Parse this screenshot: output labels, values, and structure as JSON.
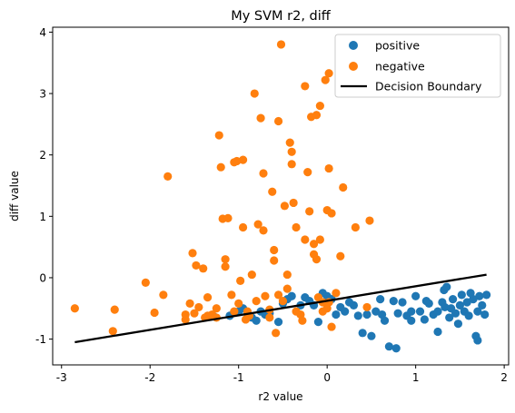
{
  "chart_data": {
    "type": "scatter",
    "title": "My SVM r2, diff",
    "xlabel": "r2 value",
    "ylabel": "diff value",
    "xlim": [
      -3.1,
      2.05
    ],
    "ylim": [
      -1.42,
      4.08
    ],
    "xticks": [
      -3,
      -2,
      -1,
      0,
      1,
      2
    ],
    "yticks": [
      -1,
      0,
      1,
      2,
      3,
      4
    ],
    "grid": false,
    "legend_position": "top-right",
    "series": [
      {
        "name": "positive",
        "color": "#1f77b4",
        "marker": "circle",
        "points": [
          [
            -1.28,
            -0.63
          ],
          [
            -1.1,
            -0.62
          ],
          [
            -1.05,
            -0.56
          ],
          [
            -1.0,
            -0.55
          ],
          [
            -0.95,
            -0.5
          ],
          [
            -0.9,
            -0.58
          ],
          [
            -0.85,
            -0.65
          ],
          [
            -0.8,
            -0.7
          ],
          [
            -0.75,
            -0.55
          ],
          [
            -0.7,
            -0.6
          ],
          [
            -0.65,
            -0.58
          ],
          [
            -0.55,
            -0.72
          ],
          [
            -0.5,
            -0.42
          ],
          [
            -0.45,
            -0.35
          ],
          [
            -0.4,
            -0.3
          ],
          [
            -0.3,
            -0.45
          ],
          [
            -0.25,
            -0.32
          ],
          [
            -0.2,
            -0.38
          ],
          [
            -0.15,
            -0.45
          ],
          [
            -0.1,
            -0.72
          ],
          [
            -0.05,
            -0.25
          ],
          [
            0.0,
            -0.3
          ],
          [
            0.05,
            -0.35
          ],
          [
            0.1,
            -0.6
          ],
          [
            0.15,
            -0.48
          ],
          [
            0.2,
            -0.55
          ],
          [
            0.25,
            -0.4
          ],
          [
            0.3,
            -0.45
          ],
          [
            0.35,
            -0.62
          ],
          [
            0.4,
            -0.9
          ],
          [
            0.45,
            -0.6
          ],
          [
            0.5,
            -0.95
          ],
          [
            0.55,
            -0.55
          ],
          [
            0.6,
            -0.35
          ],
          [
            0.65,
            -0.7
          ],
          [
            0.7,
            -1.12
          ],
          [
            0.75,
            -0.38
          ],
          [
            0.8,
            -0.58
          ],
          [
            0.85,
            -0.4
          ],
          [
            0.9,
            -0.62
          ],
          [
            0.95,
            -0.7
          ],
          [
            1.0,
            -0.3
          ],
          [
            1.05,
            -0.55
          ],
          [
            1.1,
            -0.68
          ],
          [
            1.15,
            -0.42
          ],
          [
            1.2,
            -0.6
          ],
          [
            1.25,
            -0.55
          ],
          [
            1.3,
            -0.4
          ],
          [
            1.32,
            -0.2
          ],
          [
            1.35,
            -0.15
          ],
          [
            1.38,
            -0.65
          ],
          [
            1.4,
            -0.5
          ],
          [
            1.42,
            -0.35
          ],
          [
            1.45,
            -0.58
          ],
          [
            1.48,
            -0.75
          ],
          [
            1.5,
            -0.45
          ],
          [
            1.52,
            -0.28
          ],
          [
            1.55,
            -0.55
          ],
          [
            1.58,
            -0.4
          ],
          [
            1.6,
            -0.62
          ],
          [
            1.62,
            -0.25
          ],
          [
            1.65,
            -0.35
          ],
          [
            1.68,
            -0.95
          ],
          [
            1.7,
            -0.55
          ],
          [
            1.72,
            -0.3
          ],
          [
            1.75,
            -0.45
          ],
          [
            1.78,
            -0.6
          ],
          [
            1.8,
            -0.28
          ],
          [
            1.7,
            -1.02
          ],
          [
            1.25,
            -0.88
          ],
          [
            0.95,
            -0.55
          ],
          [
            0.78,
            -1.15
          ],
          [
            0.62,
            -0.6
          ],
          [
            1.12,
            -0.38
          ],
          [
            1.33,
            -0.48
          ]
        ]
      },
      {
        "name": "negative",
        "color": "#ff7f0e",
        "marker": "circle",
        "points": [
          [
            -2.85,
            -0.5
          ],
          [
            -2.4,
            -0.52
          ],
          [
            -2.42,
            -0.87
          ],
          [
            -2.05,
            -0.08
          ],
          [
            -1.95,
            -0.57
          ],
          [
            -1.85,
            -0.28
          ],
          [
            -1.8,
            1.65
          ],
          [
            -1.6,
            -0.68
          ],
          [
            -1.55,
            -0.42
          ],
          [
            -1.52,
            0.4
          ],
          [
            -1.5,
            -0.58
          ],
          [
            -1.48,
            0.2
          ],
          [
            -1.45,
            -0.48
          ],
          [
            -1.4,
            0.15
          ],
          [
            -1.38,
            -0.65
          ],
          [
            -1.35,
            -0.32
          ],
          [
            -1.3,
            -0.6
          ],
          [
            -1.25,
            -0.5
          ],
          [
            -1.22,
            2.32
          ],
          [
            -1.2,
            1.8
          ],
          [
            -1.18,
            0.96
          ],
          [
            -1.15,
            0.3
          ],
          [
            -1.15,
            0.18
          ],
          [
            -1.12,
            0.97
          ],
          [
            -1.08,
            -0.28
          ],
          [
            -1.05,
            -0.55
          ],
          [
            -1.05,
            1.88
          ],
          [
            -1.02,
            1.9
          ],
          [
            -1.0,
            -0.42
          ],
          [
            -0.98,
            -0.05
          ],
          [
            -0.95,
            0.82
          ],
          [
            -0.95,
            1.92
          ],
          [
            -0.92,
            -0.68
          ],
          [
            -0.9,
            -0.55
          ],
          [
            -0.88,
            -0.62
          ],
          [
            -0.85,
            0.05
          ],
          [
            -0.82,
            3.0
          ],
          [
            -0.8,
            -0.38
          ],
          [
            -0.78,
            0.87
          ],
          [
            -0.75,
            2.6
          ],
          [
            -0.72,
            0.77
          ],
          [
            -0.72,
            1.7
          ],
          [
            -0.7,
            -0.3
          ],
          [
            -0.65,
            -0.52
          ],
          [
            -0.62,
            1.4
          ],
          [
            -0.6,
            0.45
          ],
          [
            -0.6,
            0.28
          ],
          [
            -0.58,
            -0.9
          ],
          [
            -0.55,
            2.55
          ],
          [
            -0.55,
            -0.28
          ],
          [
            -0.52,
            3.8
          ],
          [
            -0.5,
            -0.38
          ],
          [
            -0.48,
            1.17
          ],
          [
            -0.45,
            0.05
          ],
          [
            -0.45,
            -0.18
          ],
          [
            -0.42,
            2.2
          ],
          [
            -0.4,
            1.85
          ],
          [
            -0.4,
            2.05
          ],
          [
            -0.38,
            1.22
          ],
          [
            -0.35,
            0.82
          ],
          [
            -0.35,
            -0.55
          ],
          [
            -0.3,
            -0.6
          ],
          [
            -0.28,
            -0.7
          ],
          [
            -0.25,
            0.62
          ],
          [
            -0.25,
            3.12
          ],
          [
            -0.22,
            1.72
          ],
          [
            -0.2,
            1.08
          ],
          [
            -0.18,
            2.62
          ],
          [
            -0.15,
            0.38
          ],
          [
            -0.15,
            0.55
          ],
          [
            -0.12,
            0.3
          ],
          [
            -0.12,
            2.65
          ],
          [
            -0.1,
            -0.32
          ],
          [
            -0.08,
            2.8
          ],
          [
            -0.08,
            0.62
          ],
          [
            -0.05,
            -0.55
          ],
          [
            -0.02,
            3.22
          ],
          [
            0.0,
            -0.5
          ],
          [
            0.0,
            1.1
          ],
          [
            0.02,
            1.78
          ],
          [
            0.02,
            3.33
          ],
          [
            0.05,
            -0.8
          ],
          [
            0.05,
            1.05
          ],
          [
            0.1,
            -0.25
          ],
          [
            0.15,
            0.35
          ],
          [
            0.18,
            1.47
          ],
          [
            0.32,
            0.82
          ],
          [
            0.45,
            -0.48
          ],
          [
            0.48,
            0.93
          ],
          [
            -1.6,
            -0.6
          ],
          [
            -1.35,
            -0.62
          ],
          [
            -1.25,
            -0.65
          ],
          [
            -0.65,
            -0.65
          ],
          [
            -0.05,
            -0.4
          ],
          [
            0.02,
            -0.4
          ]
        ]
      },
      {
        "name": "Decision Boundary",
        "color": "#000000",
        "marker": "line",
        "points": [
          [
            -2.85,
            -1.05
          ],
          [
            1.8,
            0.05
          ]
        ]
      }
    ]
  }
}
